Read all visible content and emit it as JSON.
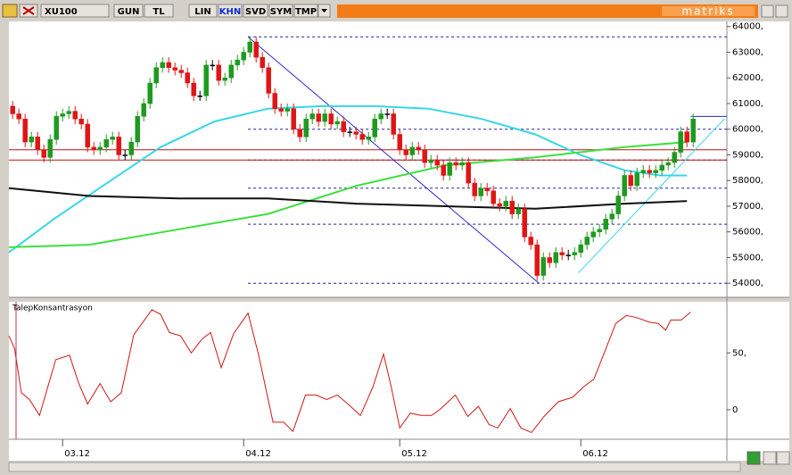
{
  "toolbar": {
    "symbol": "XU100",
    "buttons": [
      "GUN",
      "TL",
      "LIN",
      "KHN",
      "SVD",
      "SYM",
      "TMP"
    ],
    "active": "KHN",
    "brand": "matriks"
  },
  "chart_data": [
    {
      "type": "candlestick",
      "categories": [
        null,
        null,
        null,
        null,
        null,
        null,
        null,
        null,
        "03.12",
        null,
        null,
        null,
        null,
        null,
        null,
        null,
        null,
        null,
        null,
        null,
        null,
        null,
        null,
        null,
        null,
        null,
        null,
        null,
        null,
        null,
        null,
        null,
        null,
        null,
        null,
        null,
        null,
        "04.12",
        null,
        null,
        null,
        null,
        null,
        null,
        null,
        null,
        null,
        null,
        null,
        null,
        null,
        null,
        null,
        null,
        null,
        null,
        null,
        null,
        null,
        null,
        null,
        null,
        "05.12",
        null,
        null,
        null,
        null,
        null,
        null,
        null,
        null,
        null,
        null,
        null,
        null,
        null,
        null,
        null,
        null,
        null,
        null,
        null,
        null,
        null,
        null,
        null,
        null,
        null,
        null,
        null,
        null,
        "06.12",
        null,
        null,
        null,
        null,
        null,
        null,
        null,
        null,
        null,
        null,
        null,
        null,
        null,
        null,
        null,
        null,
        null,
        null
      ],
      "open": [
        60900,
        60600,
        60400,
        59500,
        59700,
        59200,
        58900,
        59600,
        60500,
        60600,
        60700,
        60400,
        60200,
        59300,
        59200,
        59300,
        59600,
        59700,
        59000,
        59000,
        59500,
        60500,
        61000,
        61800,
        62400,
        62600,
        62400,
        62300,
        62200,
        61800,
        61300,
        61300,
        62500,
        62500,
        61900,
        62000,
        62500,
        62700,
        63000,
        63400,
        62800,
        62400,
        61400,
        60800,
        60700,
        60800,
        60000,
        59700,
        60400,
        60600,
        60300,
        60600,
        60200,
        60300,
        59900,
        59900,
        59800,
        59600,
        59700,
        60400,
        60600,
        60600,
        59800,
        59200,
        59000,
        59300,
        59200,
        58700,
        58800,
        58600,
        58200,
        58700,
        58600,
        58700,
        57900,
        57400,
        57700,
        57600,
        57100,
        57000,
        57200,
        56700,
        56900,
        55800,
        55500,
        54300,
        55000,
        54800,
        55200,
        55100,
        55100,
        55200,
        55500,
        55800,
        56000,
        56100,
        56500,
        56700,
        57400,
        58200,
        57800,
        58300,
        58400,
        58300,
        58400,
        58600,
        58700,
        59100,
        59900,
        59500
      ],
      "high": [
        61100,
        60800,
        60600,
        59900,
        59900,
        59400,
        59800,
        60700,
        60800,
        60900,
        60900,
        60600,
        60400,
        59500,
        59500,
        59800,
        59900,
        59900,
        59200,
        59700,
        60700,
        61200,
        62000,
        62600,
        62800,
        62800,
        62600,
        62500,
        62400,
        62000,
        61500,
        62700,
        62700,
        62700,
        62200,
        62700,
        62900,
        63200,
        63600,
        63600,
        63000,
        62600,
        61600,
        61000,
        61000,
        61000,
        60200,
        60600,
        60800,
        60800,
        60800,
        60800,
        60500,
        60500,
        60100,
        60100,
        60000,
        59900,
        60600,
        60800,
        60800,
        60800,
        60000,
        59400,
        59500,
        59500,
        59400,
        59000,
        59000,
        58800,
        58900,
        58900,
        58900,
        58900,
        58100,
        57900,
        57900,
        57800,
        57300,
        57400,
        57400,
        57100,
        57100,
        56000,
        55700,
        55200,
        55200,
        55400,
        55400,
        55300,
        55400,
        55700,
        56000,
        56200,
        56300,
        56700,
        56900,
        57600,
        58400,
        58400,
        58500,
        58600,
        58600,
        58600,
        58800,
        58900,
        59300,
        60100,
        60100,
        60600
      ],
      "low": [
        60400,
        60200,
        59300,
        59300,
        59000,
        58700,
        58700,
        59400,
        60300,
        60400,
        60200,
        60000,
        59100,
        59000,
        59000,
        59100,
        59400,
        58800,
        58800,
        58800,
        59300,
        60300,
        60800,
        61600,
        62200,
        62200,
        62100,
        62000,
        61600,
        61100,
        61100,
        61100,
        62300,
        61700,
        61700,
        61800,
        62300,
        62500,
        62800,
        62600,
        62200,
        61200,
        60600,
        60500,
        60500,
        59800,
        59500,
        59500,
        60200,
        60100,
        60100,
        60000,
        60000,
        59700,
        59700,
        59600,
        59400,
        59400,
        59500,
        60200,
        60400,
        59600,
        59000,
        58800,
        58800,
        59000,
        58500,
        58500,
        58400,
        58000,
        58000,
        58400,
        58400,
        57700,
        57200,
        57200,
        57400,
        56900,
        56800,
        56800,
        56500,
        56500,
        55600,
        55300,
        54100,
        54100,
        54600,
        54600,
        54900,
        54900,
        54900,
        55000,
        55300,
        55600,
        55800,
        55900,
        56300,
        56500,
        57200,
        57600,
        57600,
        58100,
        58100,
        58100,
        58200,
        58400,
        58500,
        58900,
        59300,
        59300
      ],
      "close": [
        60600,
        60400,
        59500,
        59700,
        59200,
        58900,
        59600,
        60500,
        60600,
        60700,
        60400,
        60200,
        59300,
        59200,
        59300,
        59600,
        59700,
        59000,
        59000,
        59500,
        60500,
        61000,
        61800,
        62400,
        62600,
        62400,
        62300,
        62200,
        61800,
        61300,
        61300,
        62500,
        62500,
        61900,
        62000,
        62500,
        62700,
        63000,
        63400,
        62800,
        62400,
        61400,
        60800,
        60700,
        60800,
        60000,
        59700,
        60400,
        60600,
        60300,
        60600,
        60200,
        60300,
        59900,
        59900,
        59800,
        59600,
        59700,
        60400,
        60600,
        60600,
        59800,
        59200,
        59000,
        59300,
        59200,
        58700,
        58800,
        58600,
        58200,
        58700,
        58600,
        58700,
        57900,
        57400,
        57700,
        57600,
        57100,
        57000,
        57200,
        56700,
        56900,
        55800,
        55500,
        54300,
        55000,
        54800,
        55200,
        55100,
        55100,
        55200,
        55500,
        55800,
        56000,
        56100,
        56500,
        56700,
        57400,
        58200,
        57800,
        58300,
        58400,
        58300,
        58400,
        58600,
        58700,
        59100,
        59900,
        59500,
        60400
      ],
      "up_color": "#1e9a1e",
      "down_color": "#e01515",
      "xlim": [
        -0.6,
        114.4
      ],
      "ylim": [
        53450,
        64200
      ],
      "yticks": [
        {
          "value": 54000,
          "label": "54000,"
        },
        {
          "value": 55000,
          "label": "55000,"
        },
        {
          "value": 56000,
          "label": "56000,"
        },
        {
          "value": 57000,
          "label": "57000,"
        },
        {
          "value": 58000,
          "label": "58000,"
        },
        {
          "value": 59000,
          "label": "59000,"
        },
        {
          "value": 60000,
          "label": "60000,"
        },
        {
          "value": 61000,
          "label": "61000,"
        },
        {
          "value": 62000,
          "label": "62000,"
        },
        {
          "value": 63000,
          "label": "63000,"
        },
        {
          "value": 64000,
          "label": "64000,"
        }
      ],
      "series": [
        {
          "color": "#38d6e8",
          "x": [
            -0.6,
            6.6,
            15.1,
            23.7,
            32.3,
            40.9,
            49.4,
            58,
            66.6,
            75.1,
            83.7,
            90.9,
            98,
            103.7,
            108
          ],
          "values": [
            55200,
            56500,
            57900,
            59300,
            60300,
            60800,
            60900,
            60900,
            60800,
            60400,
            59800,
            59000,
            58400,
            58200,
            58200
          ]
        },
        {
          "color": "#3ee03e",
          "x": [
            -0.6,
            12.3,
            26.6,
            40.9,
            55.1,
            69.4,
            83.7,
            98,
            108
          ],
          "values": [
            55400,
            55500,
            56100,
            56700,
            57800,
            58600,
            58900,
            59300,
            59500
          ]
        },
        {
          "color": "#101010",
          "x": [
            -0.6,
            12.3,
            26.6,
            40.9,
            55.1,
            69.4,
            83.7,
            98,
            108
          ],
          "values": [
            57700,
            57400,
            57300,
            57300,
            57100,
            57000,
            56900,
            57100,
            57200
          ]
        }
      ],
      "lines": [
        {
          "color": "#2020a0",
          "dashed": true,
          "x": [
            37.7,
            114.4
          ],
          "values": [
            63600,
            63600
          ]
        },
        {
          "color": "#2020a0",
          "dashed": true,
          "x": [
            37.7,
            114.4
          ],
          "values": [
            60000,
            60000
          ]
        },
        {
          "color": "#2020a0",
          "dashed": true,
          "x": [
            37.7,
            114.4
          ],
          "values": [
            58800,
            58800
          ]
        },
        {
          "color": "#2020a0",
          "dashed": true,
          "x": [
            37.7,
            114.4
          ],
          "values": [
            57700,
            57700
          ]
        },
        {
          "color": "#2020a0",
          "dashed": true,
          "x": [
            37.7,
            114.4
          ],
          "values": [
            56300,
            56300
          ]
        },
        {
          "color": "#2020a0",
          "dashed": true,
          "x": [
            37.7,
            114.4
          ],
          "values": [
            54000,
            54000
          ]
        },
        {
          "color": "#c01010",
          "dashed": false,
          "x": [
            -0.6,
            114.4
          ],
          "values": [
            59200,
            59200
          ]
        },
        {
          "color": "#c01010",
          "dashed": false,
          "x": [
            -0.6,
            114.4
          ],
          "values": [
            58800,
            58800
          ]
        },
        {
          "color": "#2a2ad0",
          "dashed": false,
          "x": [
            37.7,
            84.3
          ],
          "values": [
            63600,
            54000
          ]
        },
        {
          "color": "#38d6e8",
          "dashed": false,
          "x": [
            90.6,
            114
          ],
          "values": [
            54400,
            60400
          ]
        },
        {
          "color": "#2a2ad0",
          "dashed": false,
          "x": [
            108.6,
            114.4
          ],
          "values": [
            60500,
            60500
          ]
        }
      ]
    },
    {
      "type": "line",
      "title": "TalepKonsantrasyon",
      "xlim": [
        -0.6,
        114.4
      ],
      "ylim": [
        -26,
        95
      ],
      "yticks": [
        {
          "value": 0,
          "label": "0"
        },
        {
          "value": 50,
          "label": "50,"
        }
      ],
      "series": [
        {
          "color": "#d01818",
          "x": [
            -0.6,
            0.3,
            1.4,
            2.7,
            4.3,
            6.9,
            9.1,
            10.6,
            12,
            14,
            15.7,
            17.4,
            19.4,
            22.3,
            23.7,
            25.1,
            26.9,
            28.6,
            30.3,
            31.7,
            33.4,
            35.4,
            37.7,
            39.4,
            41.7,
            43.4,
            44.9,
            46.9,
            48.6,
            50.3,
            52,
            53.7,
            55.7,
            57.7,
            59.4,
            60.6,
            62,
            63.7,
            65.4,
            67.1,
            68.6,
            70.9,
            72.9,
            74.6,
            76.3,
            77.7,
            79.7,
            81.4,
            83.1,
            85.1,
            87.4,
            89.7,
            91.4,
            93.1,
            94.9,
            96.6,
            98.3,
            100,
            102,
            103.4,
            104.6,
            105.4,
            107.1,
            108.6
          ],
          "values": [
            65,
            54,
            15,
            9,
            -5,
            44,
            48,
            23,
            5,
            23,
            7,
            15,
            66,
            88,
            84,
            68,
            65,
            50,
            62,
            68,
            37,
            67,
            85,
            48,
            -11,
            -11,
            -19,
            13,
            13,
            9,
            13,
            5,
            -5,
            20,
            49,
            21,
            -16,
            -3,
            -5,
            -5,
            1,
            13,
            -6,
            3,
            -13,
            -16,
            1,
            -16,
            -20,
            -6,
            7,
            11,
            20,
            27,
            52,
            76,
            83,
            81,
            77,
            76,
            70,
            79,
            79,
            86
          ]
        }
      ]
    }
  ]
}
